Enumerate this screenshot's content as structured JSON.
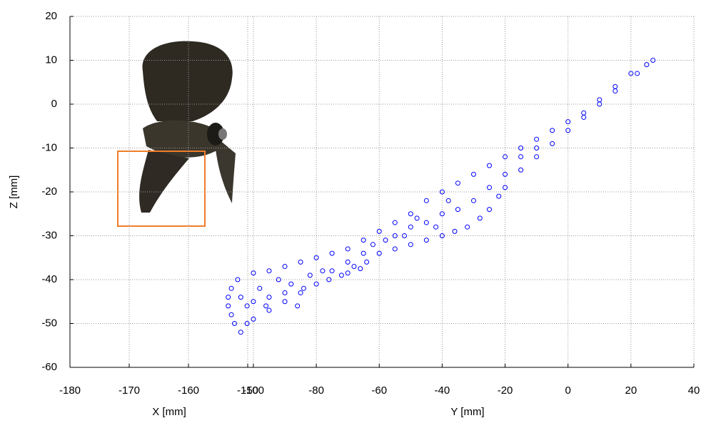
{
  "chart_data": {
    "type": "scatter",
    "x_label": "Y [mm]",
    "y_label": "Z [mm]",
    "inset_x_label": "X [mm]",
    "color": "#0000ff",
    "grid": true,
    "xlim": [
      -158.3,
      40
    ],
    "xticks": [
      -100,
      -80,
      -60,
      -40,
      -20,
      0,
      20,
      40
    ],
    "x2lim": [
      -180,
      -150
    ],
    "x2ticks": [
      -180,
      -170,
      -160,
      -150
    ],
    "ylim": [
      -60,
      20
    ],
    "yticks": [
      -60,
      -50,
      -40,
      -30,
      -20,
      -10,
      0,
      10,
      20
    ],
    "x": [
      27,
      25,
      20,
      15,
      10,
      5,
      0,
      -5,
      -10,
      -15,
      -20,
      -25,
      -30,
      -35,
      -40,
      -45,
      -50,
      -55,
      -60,
      -65,
      -70,
      -75,
      -80,
      -85,
      -90,
      -95,
      -100,
      -105,
      -107,
      -108,
      -108,
      -107,
      -106,
      -104,
      22,
      15,
      10,
      5,
      0,
      -5,
      -10,
      -15,
      -20,
      -22,
      -25,
      -28,
      -32,
      -36,
      -40,
      -45,
      -50,
      -55,
      -60,
      -65,
      -70,
      -75,
      -80,
      -85,
      -90,
      -95,
      -100,
      -102,
      -30,
      -35,
      -40,
      -45,
      -50,
      -55,
      -25,
      -20,
      -15,
      -10,
      -38,
      -42,
      -48,
      -52,
      -58,
      -62,
      -68,
      -72,
      -76,
      -78,
      -82,
      -84,
      -88,
      -90,
      -92,
      -95,
      -98,
      -100,
      -102,
      -104,
      -96,
      -86,
      -70,
      -66,
      -64
    ],
    "values": [
      10,
      9,
      7,
      4,
      1,
      -2,
      -4,
      -6,
      -8,
      -10,
      -12,
      -14,
      -16,
      -18,
      -20,
      -22,
      -25,
      -27,
      -29,
      -31,
      -33,
      -34,
      -35,
      -36,
      -37,
      -38,
      -38.5,
      -40,
      -42,
      -44,
      -46,
      -48,
      -50,
      -52,
      7,
      3,
      0,
      -3,
      -6,
      -9,
      -12,
      -15,
      -19,
      -21,
      -24,
      -26,
      -28,
      -29,
      -30,
      -31,
      -32,
      -33,
      -34,
      -34,
      -36,
      -38,
      -41,
      -43,
      -45,
      -47,
      -49,
      -50,
      -22,
      -24,
      -25,
      -27,
      -28,
      -30,
      -19,
      -16,
      -12,
      -10,
      -22,
      -28,
      -26,
      -30,
      -31,
      -32,
      -37,
      -39,
      -40,
      -38,
      -39,
      -42,
      -41,
      -43,
      -40,
      -44,
      -42,
      -45,
      -46,
      -44,
      -46,
      -46,
      -38.5,
      -37.5,
      -36
    ]
  }
}
